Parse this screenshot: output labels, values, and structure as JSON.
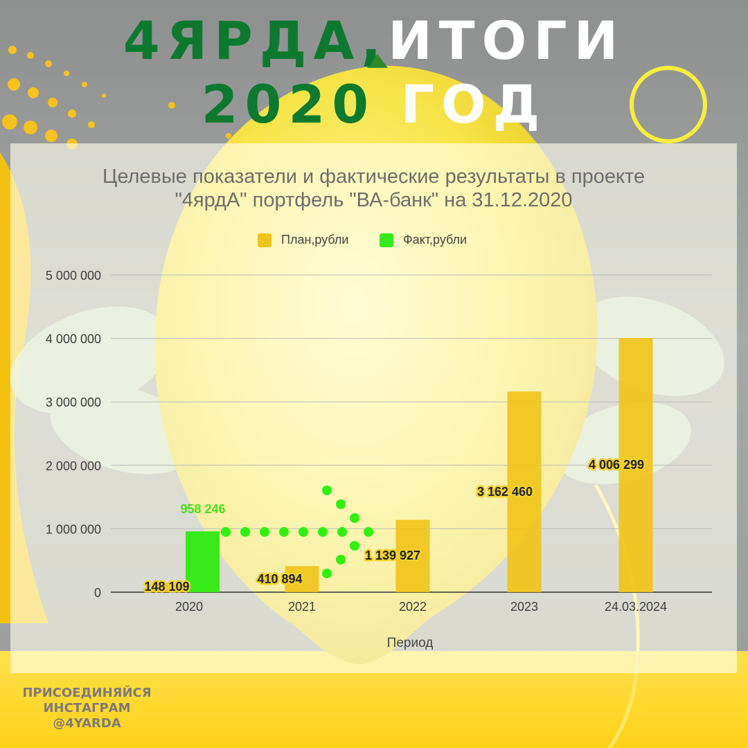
{
  "header": {
    "line1_part1": "4ЯРДА,",
    "line1_part2": "ИТОГИ",
    "line2_part1": "2020",
    "line2_part2": "ГОД"
  },
  "promo": {
    "line1": "ПРИСОЕДИНЯЙСЯ",
    "line2": "ИНСТАГРАМ",
    "line3": "@4YARDA"
  },
  "colors": {
    "plan": "#f0c419",
    "fact": "#37e918",
    "title_green": "#0c7a2e",
    "dots": "#2cf40c",
    "ring": "#f7ef3a"
  },
  "chart_data": {
    "type": "bar",
    "title_line1": "Целевые показатели и фактические результаты в проекте",
    "title_line2": "\"4ярдА\" портфель \"ВА-банк\" на 31.12.2020",
    "xlabel": "Период",
    "ylabel": "",
    "categories": [
      "2020",
      "2021",
      "2022",
      "2023",
      "24.03.2024"
    ],
    "series": [
      {
        "name": "План,рубли",
        "values": [
          148109,
          410894,
          1139927,
          3162460,
          4006299
        ]
      },
      {
        "name": "Факт,рубли",
        "values": [
          958246,
          null,
          null,
          null,
          null
        ]
      }
    ],
    "data_labels": {
      "plan": [
        "148 109",
        "410 894",
        "1 139 927",
        "3 162 460",
        "4 006 299"
      ],
      "fact": [
        "958 246",
        "",
        "",
        "",
        ""
      ]
    },
    "ylim": [
      0,
      5000000
    ],
    "yticks": [
      0,
      1000000,
      2000000,
      3000000,
      4000000,
      5000000
    ],
    "ytick_labels": [
      "0",
      "1 000 000",
      "2 000 000",
      "3 000 000",
      "4 000 000",
      "5 000 000"
    ],
    "grid": true,
    "legend_position": "top-center"
  }
}
